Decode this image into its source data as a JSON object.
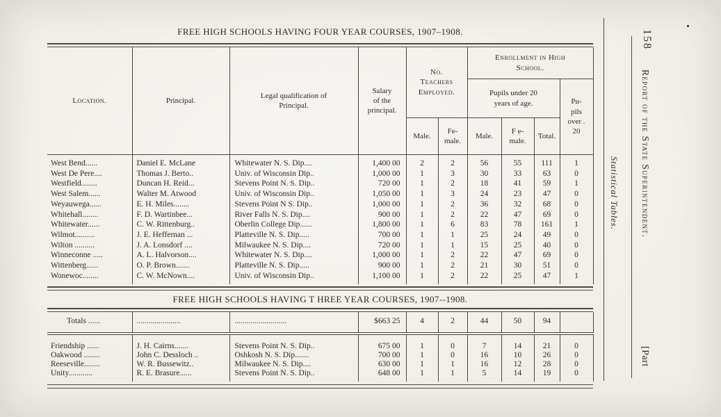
{
  "meta": {
    "columns": [
      "location",
      "principal",
      "qualification",
      "salary",
      "teachers-male",
      "teachers-female",
      "pupils-male",
      "pupils-female",
      "pupils-total",
      "pupils-over-20"
    ]
  },
  "margin": {
    "page_number": "158",
    "running_head": "Report of the State Superintendent.",
    "side_caption": "Statistical Tables.",
    "part_label": "[Part"
  },
  "table_four_year": {
    "title": "FREE HIGH SCHOOLS HAVING FOUR YEAR COURSES, 1907–1908.",
    "headers": {
      "location": "Location.",
      "principal": "Principal.",
      "qualification": "Legal qualification of\nPrincipal.",
      "salary": "Salary\nof the\nprincipal.",
      "teachers_group": "No.\nTeachers\nEmployed.",
      "enrollment_group": "Enrollment in High\nSchool.",
      "under20_group": "Pupils under 20\nyears of age.",
      "teachers_male": "Male.",
      "teachers_female": "Fe-\nmale.",
      "pupils_male": "Male.",
      "pupils_female": "F e-\nmale.",
      "pupils_total": "Total.",
      "pupils_over20": "Pu-\npils\nover .\n20"
    },
    "rows": [
      [
        "West Bend......",
        "Daniel E. McLane",
        "Whitewater N. S. Dip....",
        "1,400 00",
        "2",
        "2",
        "56",
        "55",
        "111",
        "1"
      ],
      [
        "West De Pere....",
        "Thomas J. Berto..",
        "Univ. of Wisconsin Dip..",
        "1,000 00",
        "1",
        "3",
        "30",
        "33",
        "63",
        "0"
      ],
      [
        "Westfield........",
        "Duncan H. Reid...",
        "Stevens Point N. S. Dip..",
        "720 00",
        "1",
        "2",
        "18",
        "41",
        "59",
        "1"
      ],
      [
        "West Salem......",
        "Walter M. Atwood",
        "Univ. of Wisconsin Dip..",
        "1,050 00",
        "1",
        "3",
        "24",
        "23",
        "47",
        "0"
      ],
      [
        "Weyauwega......",
        "E. H. Miles........",
        "Stevens Point N S. Dip..",
        "1,000 00",
        "1",
        "2",
        "36",
        "32",
        "68",
        "0"
      ],
      [
        "Whitehall........",
        "F. D. Wartinbee...",
        "River Falls N. S. Dip....",
        "900 00",
        "1",
        "2",
        "22",
        "47",
        "69",
        "0"
      ],
      [
        "Whitewater......",
        "C. W. Rittenburg..",
        "Oberlin College Dip......",
        "1,800 00",
        "1",
        "6",
        "83",
        "78",
        "161",
        "1"
      ],
      [
        "Wilmot..........",
        "J. E. Heffernan ...",
        "Platteville N. S. Dip.....",
        "700 00",
        "1",
        "1",
        "25",
        "24",
        "49",
        "0"
      ],
      [
        "Wilton ..........",
        "J. A. Lonsdorf ....",
        "Milwaukee N. S. Dip....",
        "720 00",
        "1",
        "1",
        "15",
        "25",
        "40",
        "0"
      ],
      [
        "Winneconne .....",
        "A. L. Halvorson....",
        "Whitewater N. S. Dip....",
        "1,000 00",
        "1",
        "2",
        "22",
        "47",
        "69",
        "0"
      ],
      [
        "Wittenberg......",
        "O. P. Brown.......",
        "Platteville N. S. Dip.....",
        "900 00",
        "1",
        "2",
        "21",
        "30",
        "51",
        "0"
      ],
      [
        "Wonewoc........",
        "C. W. McNown....",
        "Univ. of Wisconsin Dip..",
        "1,100 00",
        "1",
        "2",
        "22",
        "25",
        "47",
        "1"
      ]
    ]
  },
  "table_three_year": {
    "title": "FREE HIGH SCHOOLS HAVING T HREE YEAR COURSES, 1907--1908.",
    "totals_rows": [
      [
        "Totals ......",
        "......................",
        "..........................",
        "$663 25",
        "4",
        "2",
        "44",
        "50",
        "94",
        ""
      ]
    ],
    "rows": [
      [
        "Friendship ......",
        "J. H. Cairns.......",
        "Stevens Point N. S. Dip..",
        "675 00",
        "1",
        "0",
        "7",
        "14",
        "21",
        "0"
      ],
      [
        "Oakwood ........",
        "John C. Dessloch ..",
        "Oshkosh N. S. Dip.......",
        "700 00",
        "1",
        "0",
        "16",
        "10",
        "26",
        "0"
      ],
      [
        "Reeseville........",
        "W. R. Bussewitz..",
        "Milwaukee N. S. Dip....",
        "630 00",
        "1",
        "1",
        "16",
        "12",
        "28",
        "0"
      ],
      [
        "Unity............",
        "R. E. Brasure......",
        "Stevens Point N. S. Dip..",
        "648 00",
        "1",
        "1",
        "5",
        "14",
        "19",
        "0"
      ]
    ]
  }
}
